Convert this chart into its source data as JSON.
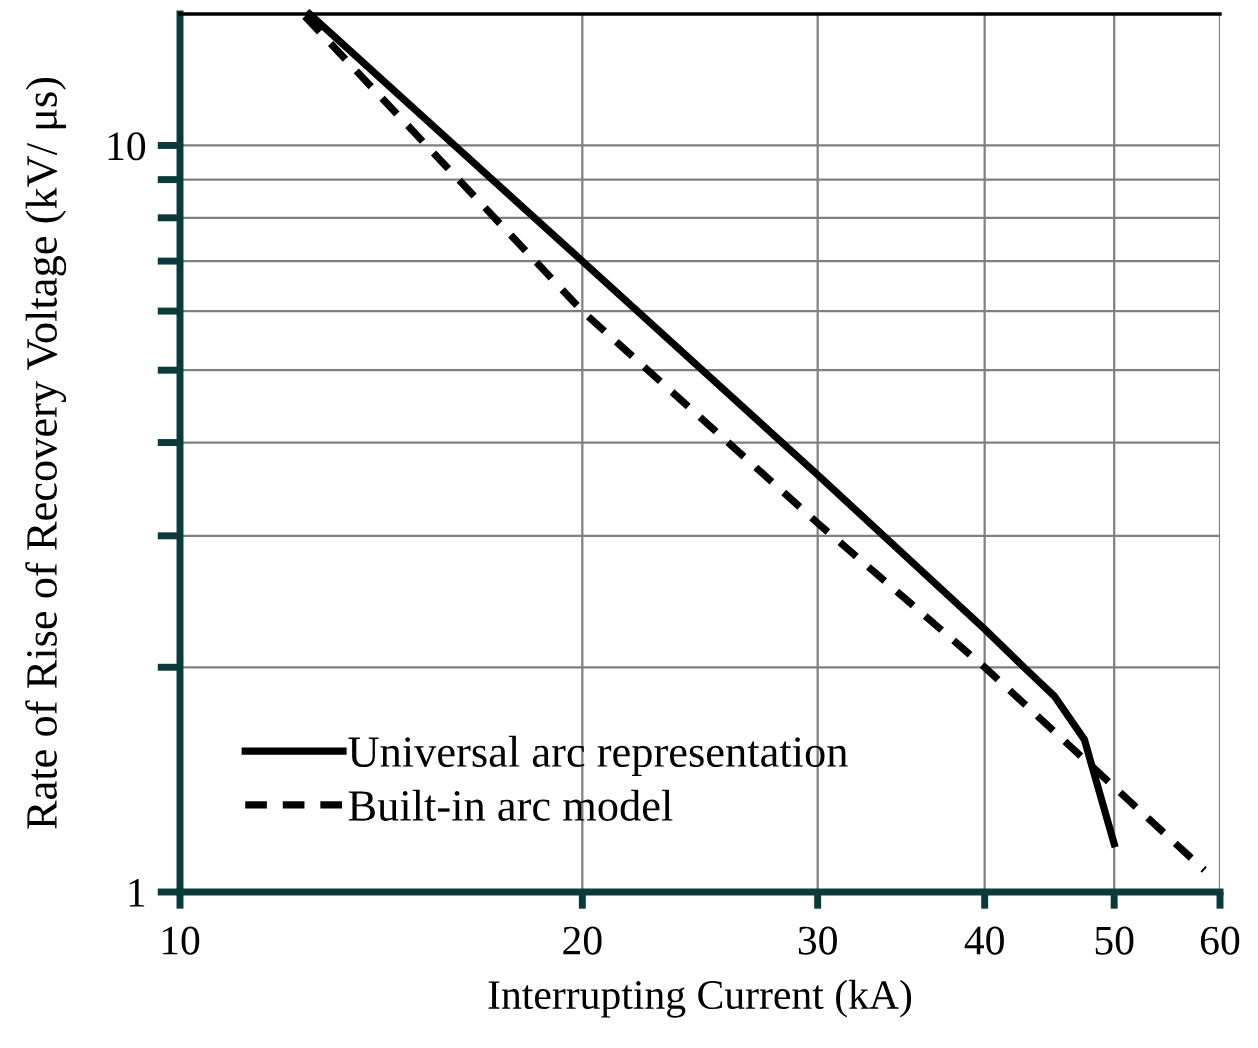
{
  "chart_data": {
    "type": "line",
    "xlabel": "Interrupting Current (kA)",
    "ylabel": "Rate of Rise of Recovery Voltage (kV/ μs)",
    "log": "xy",
    "xlim": [
      10,
      60
    ],
    "ylim": [
      1,
      15
    ],
    "xticks": [
      10,
      20,
      30,
      40,
      50,
      60
    ],
    "yticks": [
      1,
      {
        "value": 2,
        "label": null
      },
      {
        "value": 3,
        "label": null
      },
      {
        "value": 4,
        "label": null
      },
      {
        "value": 5,
        "label": null
      },
      {
        "value": 6,
        "label": null
      },
      {
        "value": 7,
        "label": null
      },
      {
        "value": 8,
        "label": null
      },
      {
        "value": 9,
        "label": null
      },
      10
    ],
    "grid": true,
    "legend": "bottom left",
    "marker": "none",
    "series": [
      {
        "name": "Universal arc representation",
        "color": "#000000",
        "line_style": "solid",
        "x": [
          12.5,
          20,
          30,
          40,
          42.8,
          45.1,
          47.5,
          50
        ],
        "values": [
          15,
          7.0,
          3.62,
          2.25,
          2.0,
          1.83,
          1.6,
          1.16
        ]
      },
      {
        "name": "Built-in arc model",
        "color": "#000000",
        "line_style": "dashed",
        "x": [
          12.4,
          20,
          30,
          40,
          58.4
        ],
        "values": [
          14.9,
          6.0,
          3.12,
          2.0,
          1.07
        ]
      }
    ]
  }
}
